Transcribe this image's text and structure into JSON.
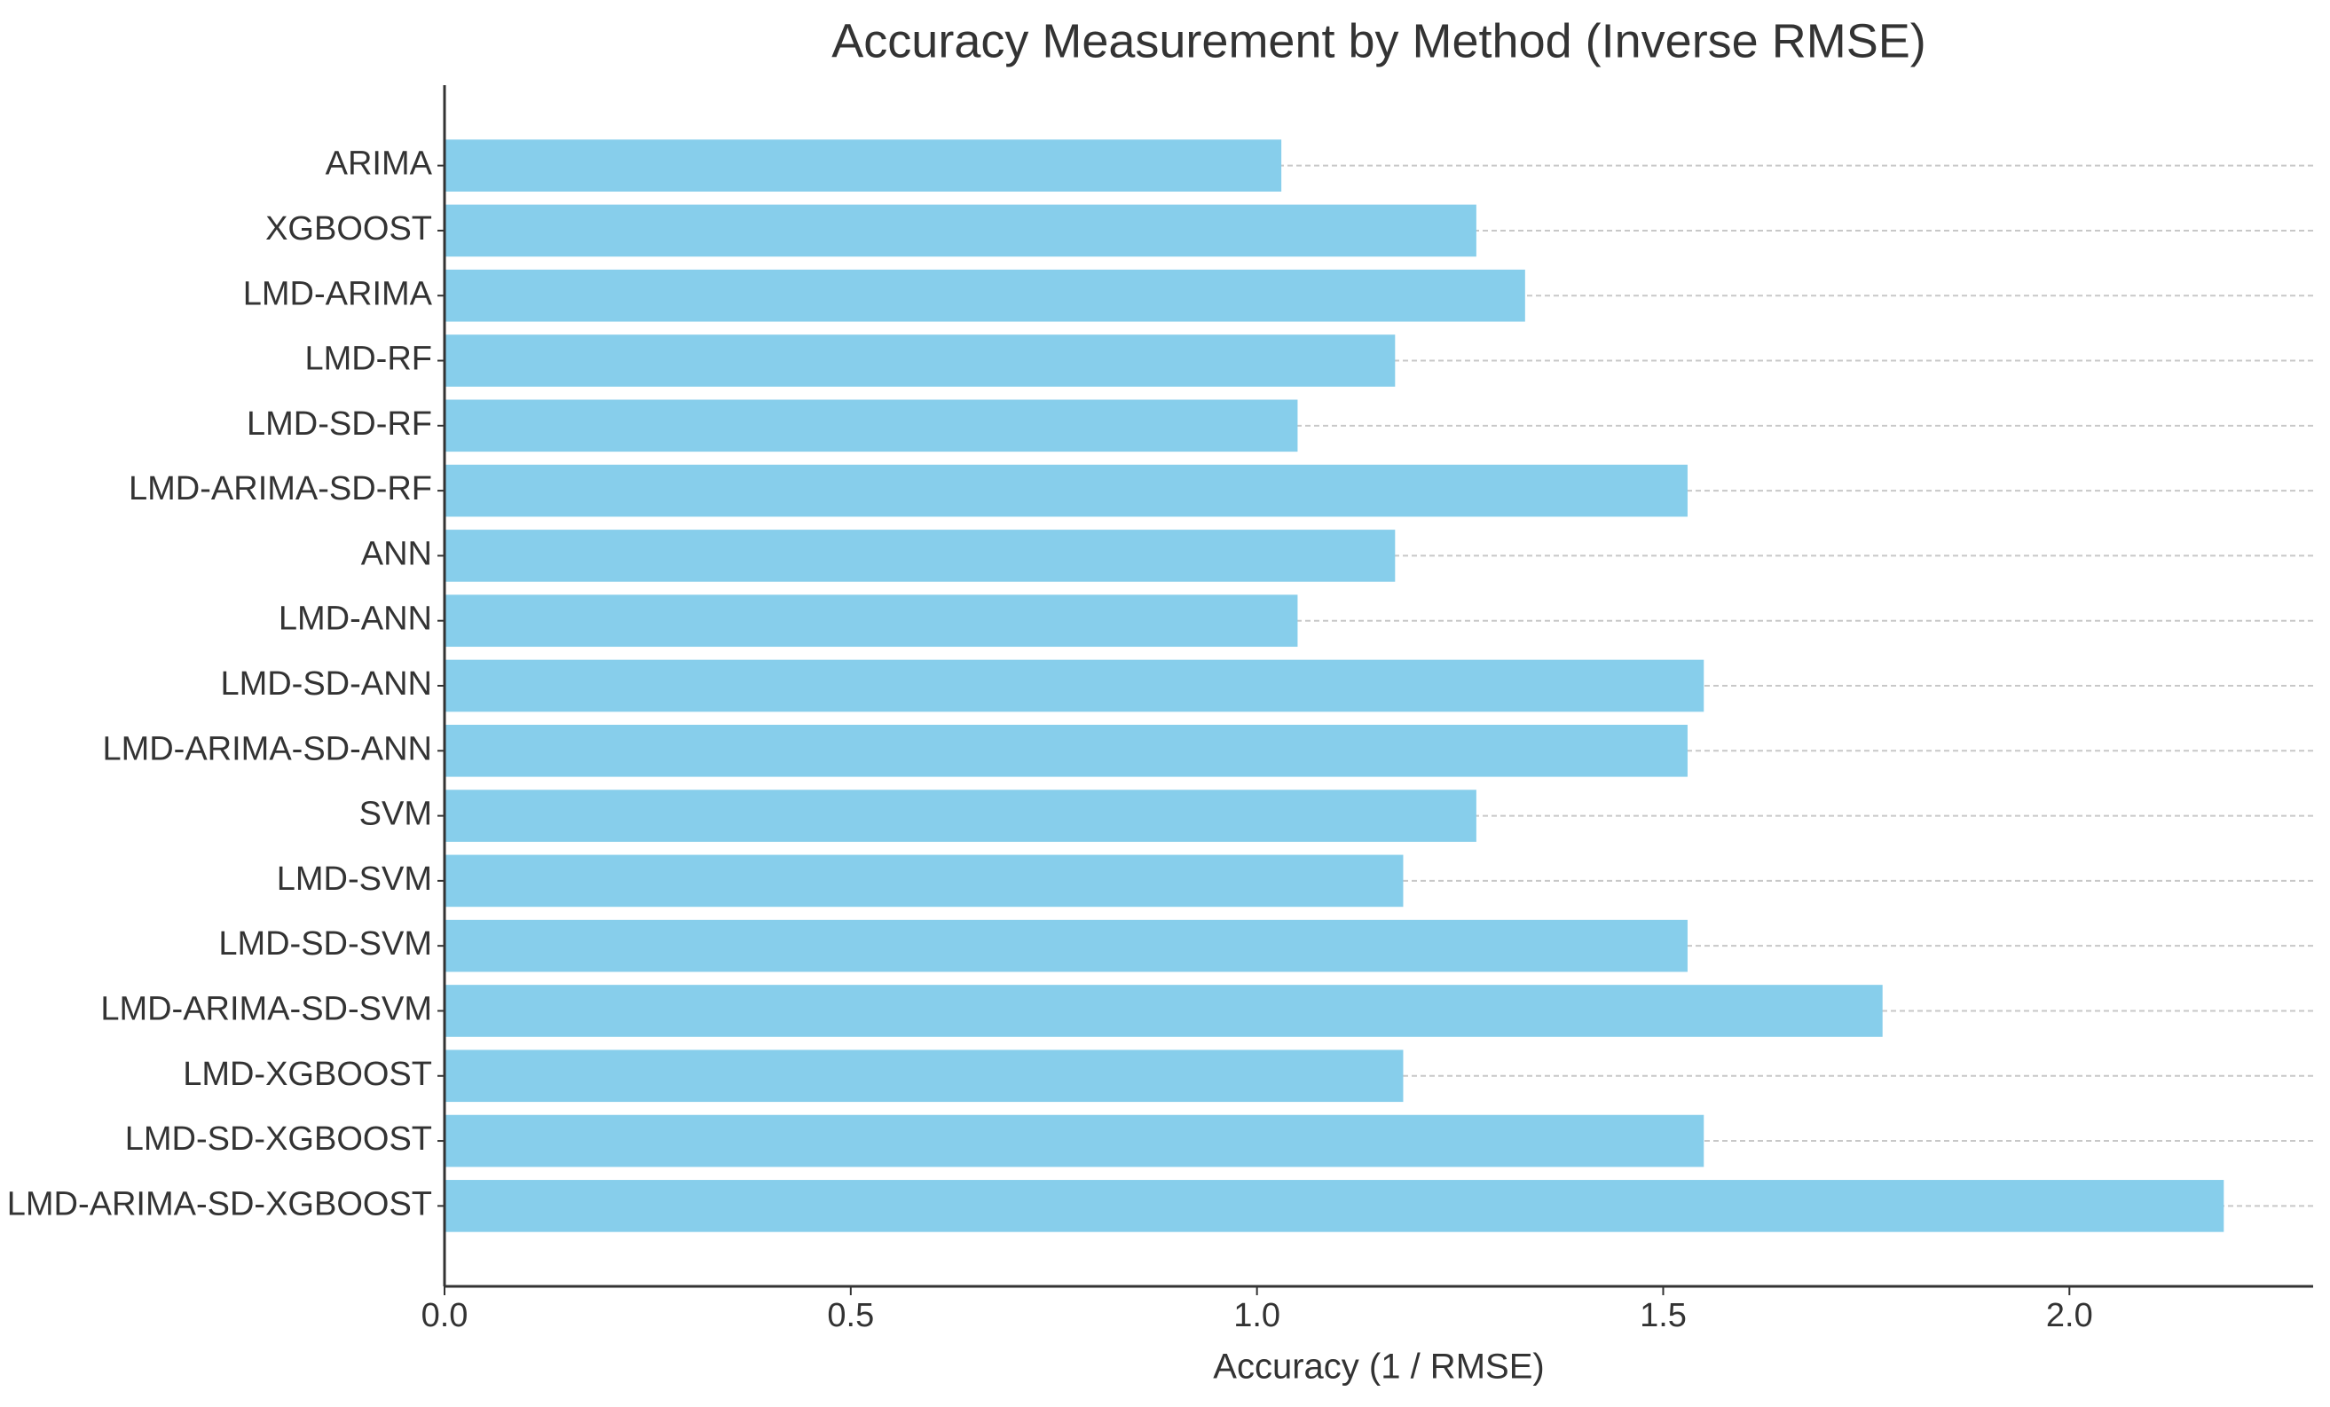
{
  "chart_data": {
    "type": "bar",
    "orientation": "horizontal",
    "title": "Accuracy Measurement by Method (Inverse RMSE)",
    "x_label": "Accuracy (1 / RMSE)",
    "categories": [
      "ARIMA",
      "XGBOOST",
      "LMD-ARIMA",
      "LMD-RF",
      "LMD-SD-RF",
      "LMD-ARIMA-SD-RF",
      "ANN",
      "LMD-ANN",
      "LMD-SD-ANN",
      "LMD-ARIMA-SD-ANN",
      "SVM",
      "LMD-SVM",
      "LMD-SD-SVM",
      "LMD-ARIMA-SD-SVM",
      "LMD-XGBOOST",
      "LMD-SD-XGBOOST",
      "LMD-ARIMA-SD-XGBOOST"
    ],
    "values": [
      1.03,
      1.27,
      1.33,
      1.17,
      1.05,
      1.53,
      1.17,
      1.05,
      1.55,
      1.53,
      1.27,
      1.18,
      1.53,
      1.77,
      1.18,
      1.55,
      2.19
    ],
    "color": "#87ceeb",
    "xlim": [
      0,
      2.3
    ],
    "xticks": [
      {
        "value": 0,
        "label": "0.0"
      },
      {
        "value": 0.5,
        "label": "0.5"
      },
      {
        "value": 1,
        "label": "1.0"
      },
      {
        "value": 1.5,
        "label": "1.5"
      },
      {
        "value": 2,
        "label": "2.0"
      }
    ],
    "grid": true
  }
}
